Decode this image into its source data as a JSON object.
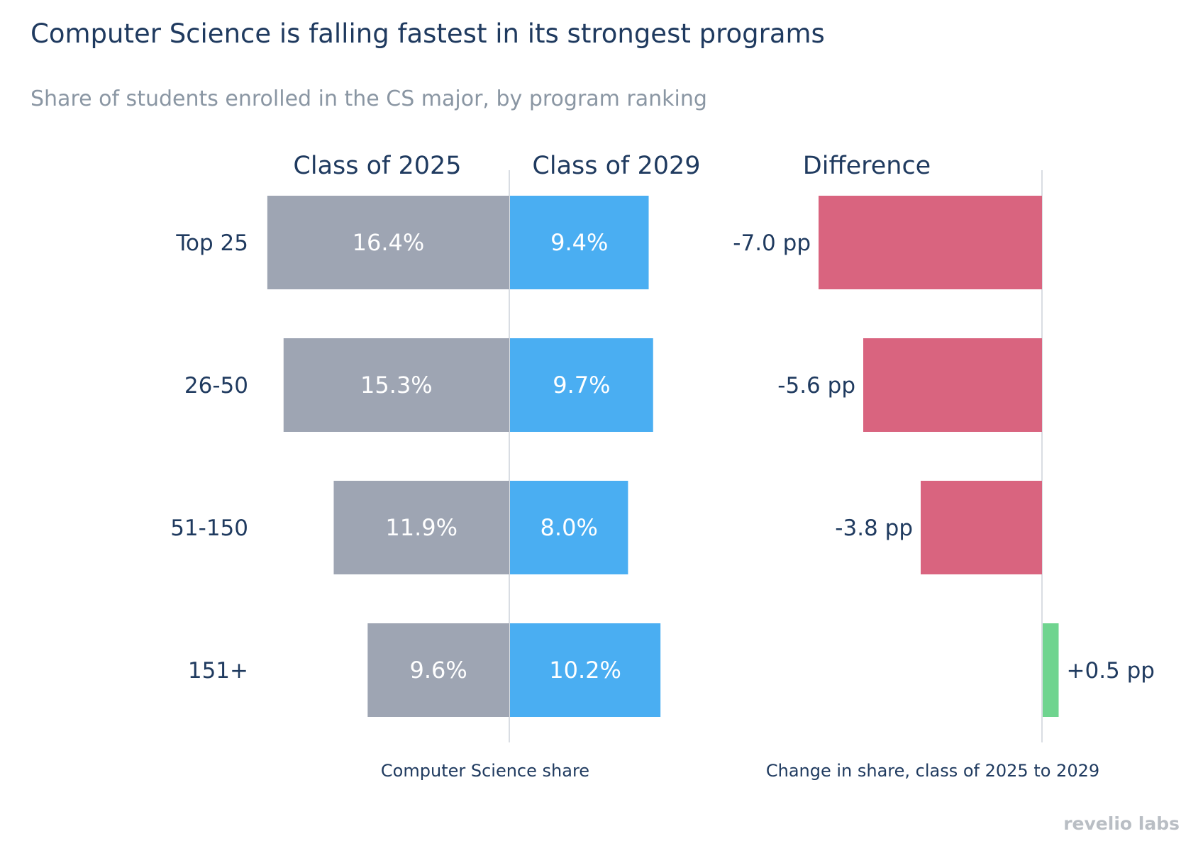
{
  "chart_data": {
    "type": "bar",
    "title": "Computer Science is falling fastest in its strongest programs",
    "subtitle": "Share of students enrolled in the CS major, by program ranking",
    "categories": [
      "Top 25",
      "26-50",
      "51-150",
      "151+"
    ],
    "left_panel": {
      "xlabel": "Computer Science share",
      "series": [
        {
          "name": "Class of 2025",
          "values": [
            16.4,
            15.3,
            11.9,
            9.6
          ],
          "labels": [
            "16.4%",
            "15.3%",
            "11.9%",
            "9.6%"
          ],
          "direction": "left",
          "color": "#9ea5b3"
        },
        {
          "name": "Class of 2029",
          "values": [
            9.4,
            9.7,
            8.0,
            10.2
          ],
          "labels": [
            "9.4%",
            "9.7%",
            "8.0%",
            "10.2%"
          ],
          "direction": "right",
          "color": "#4aaef2"
        }
      ]
    },
    "right_panel": {
      "header": "Difference",
      "xlabel": "Change in share, class of 2025 to 2029",
      "values": [
        -7.0,
        -5.6,
        -3.8,
        0.5
      ],
      "labels": [
        "-7.0 pp",
        "-5.6 pp",
        "-3.8 pp",
        "+0.5 pp"
      ],
      "negative_color": "#d9647f",
      "positive_color": "#6fd48f"
    }
  },
  "branding": {
    "logo_text": "revelio labs"
  }
}
